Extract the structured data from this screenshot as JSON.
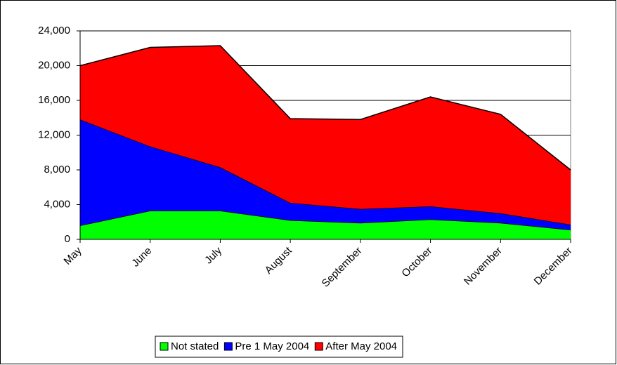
{
  "chart_data": {
    "type": "area",
    "stacked": true,
    "categories": [
      "May",
      "June",
      "July",
      "August",
      "September",
      "October",
      "November",
      "December"
    ],
    "series": [
      {
        "name": "Not stated",
        "color": "#00ff00",
        "values": [
          1600,
          3300,
          3300,
          2200,
          1900,
          2300,
          1900,
          1100
        ]
      },
      {
        "name": "Pre 1 May 2004",
        "color": "#0000ff",
        "values": [
          12200,
          7400,
          5000,
          2000,
          1600,
          1500,
          1100,
          600
        ]
      },
      {
        "name": "After May 2004",
        "color": "#ff0000",
        "values": [
          6200,
          11400,
          14000,
          9700,
          10300,
          12600,
          11400,
          6300
        ]
      }
    ],
    "ylim": [
      0,
      24000
    ],
    "yticks": [
      0,
      {
        "value": 4000,
        "label": "4,000"
      },
      {
        "value": 8000,
        "label": "8,000"
      },
      {
        "value": 12000,
        "label": "12,000"
      },
      {
        "value": 16000,
        "label": "16,000"
      },
      {
        "value": 20000,
        "label": "20,000"
      },
      {
        "value": 24000,
        "label": "24,000"
      }
    ],
    "grid": true,
    "legend": "bottom"
  }
}
